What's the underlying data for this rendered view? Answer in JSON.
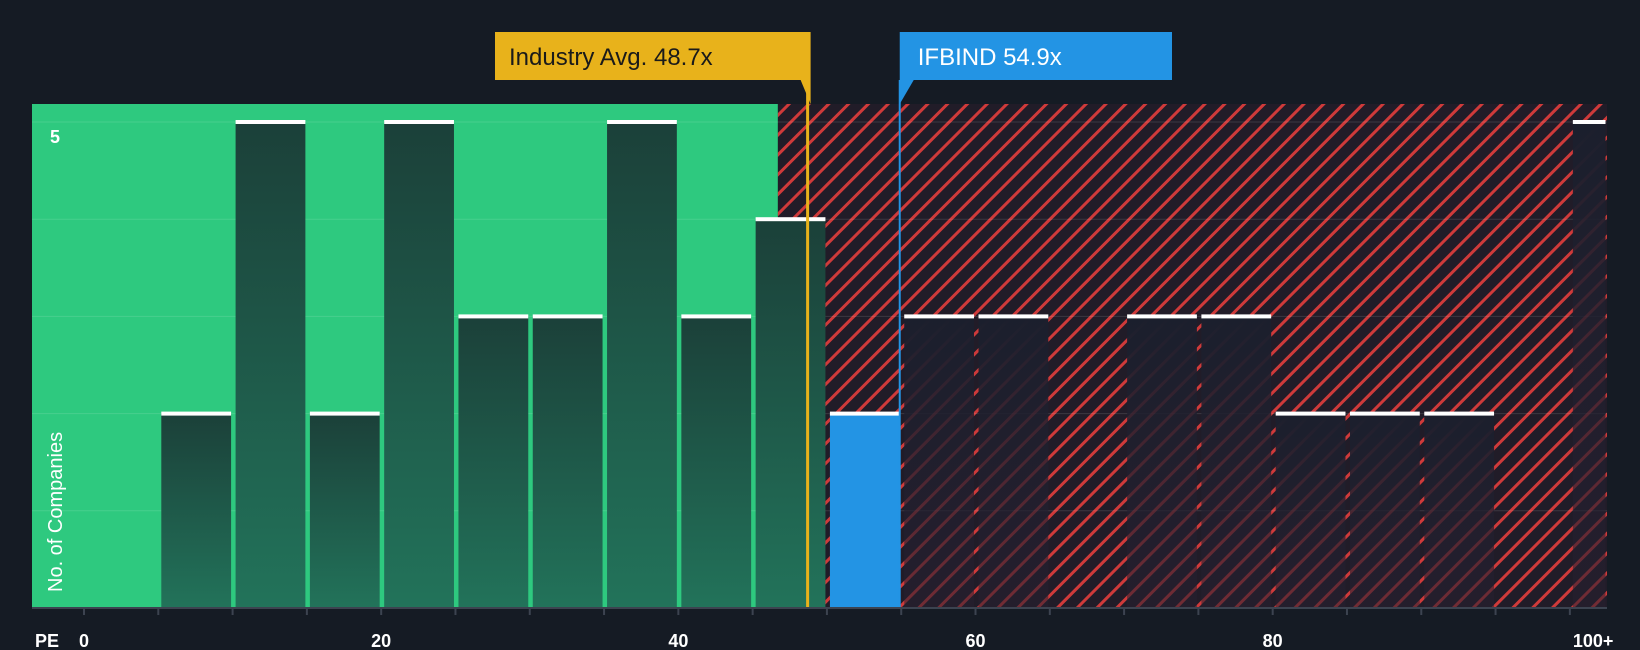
{
  "chart_data": {
    "type": "bar",
    "x_title": "PE",
    "y_title": "No. of Companies",
    "x_tick_labels": [
      "0",
      "20",
      "40",
      "60",
      "80",
      "100+"
    ],
    "x_ticks": [
      0,
      20,
      40,
      60,
      80,
      100
    ],
    "y_tick_labels": [
      "5"
    ],
    "ylim": [
      0,
      5
    ],
    "xlim": [
      -3.5,
      102.5
    ],
    "bin_width": 5,
    "bars": [
      {
        "x0": 5,
        "x1": 10,
        "value": 2
      },
      {
        "x0": 10,
        "x1": 15,
        "value": 5
      },
      {
        "x0": 15,
        "x1": 20,
        "value": 2
      },
      {
        "x0": 20,
        "x1": 25,
        "value": 5
      },
      {
        "x0": 25,
        "x1": 30,
        "value": 3
      },
      {
        "x0": 30,
        "x1": 35,
        "value": 3
      },
      {
        "x0": 35,
        "x1": 40,
        "value": 5
      },
      {
        "x0": 40,
        "x1": 45,
        "value": 3
      },
      {
        "x0": 45,
        "x1": 50,
        "value": 4
      },
      {
        "x0": 50,
        "x1": 55,
        "value": 2,
        "highlight": true
      },
      {
        "x0": 55,
        "x1": 60,
        "value": 3
      },
      {
        "x0": 60,
        "x1": 65,
        "value": 3
      },
      {
        "x0": 70,
        "x1": 75,
        "value": 3
      },
      {
        "x0": 75,
        "x1": 80,
        "value": 3
      },
      {
        "x0": 80,
        "x1": 85,
        "value": 2
      },
      {
        "x0": 85,
        "x1": 90,
        "value": 2
      },
      {
        "x0": 90,
        "x1": 95,
        "value": 2
      },
      {
        "x0": 100,
        "x1": 105,
        "value": 5
      }
    ],
    "fair_zone_end": 46.7,
    "industry_avg": {
      "label": "Industry Avg. 48.7x",
      "value": 48.7
    },
    "company": {
      "label": "IFBIND 54.9x",
      "value": 54.9
    },
    "grid": true,
    "legend": "none",
    "colors": {
      "background": "#151b24",
      "fair_zone": "#2ec97f",
      "bar_in_fair_zone": "#1e6b52",
      "bar_in_expensive_zone": "#1d2130",
      "bar_cap": "#ffffff",
      "highlight_bar": "#2394e4",
      "industry_avg": "#e8b21b",
      "company": "#2394e4",
      "hatch": "#d83b3b"
    }
  }
}
